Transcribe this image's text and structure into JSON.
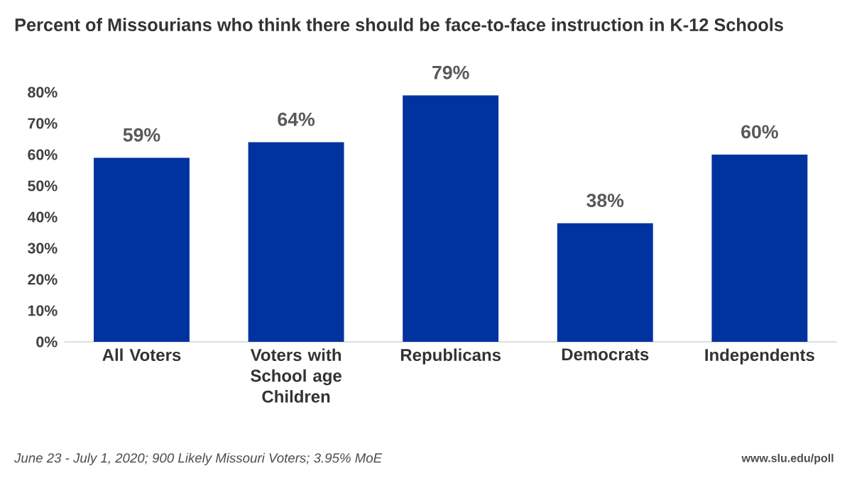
{
  "chart_data": {
    "type": "bar",
    "title": "Percent of Missourians who think there should be face-to-face instruction in K-12 Schools",
    "categories": [
      "All Voters",
      "Voters with School age Children",
      "Republicans",
      "Democrats",
      "Independents"
    ],
    "values": [
      59,
      64,
      79,
      38,
      60
    ],
    "value_labels": [
      "59%",
      "64%",
      "79%",
      "38%",
      "60%"
    ],
    "color": "#0033a0",
    "ylim": [
      0,
      80
    ],
    "yticks": [
      {
        "value": 0,
        "label": "0%"
      },
      {
        "value": 10,
        "label": "10%"
      },
      {
        "value": 20,
        "label": "20%"
      },
      {
        "value": 30,
        "label": "30%"
      },
      {
        "value": 40,
        "label": "40%"
      },
      {
        "value": 50,
        "label": "50%"
      },
      {
        "value": 60,
        "label": "60%"
      },
      {
        "value": 70,
        "label": "70%"
      },
      {
        "value": 80,
        "label": "80%"
      }
    ],
    "grid": false,
    "annotations": [
      "June 23 - July 1, 2020; 900 Likely Missouri Voters; 3.95% MoE",
      "www.slu.edu/poll"
    ]
  }
}
